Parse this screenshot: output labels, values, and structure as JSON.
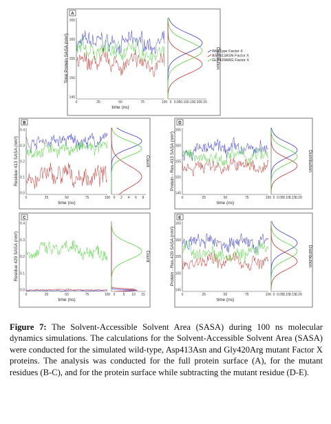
{
  "colors": {
    "wild": "#3b3bd6",
    "asp": "#c8322d",
    "gly": "#4fd43a"
  },
  "caption": {
    "lead": "Figure 7:",
    "text": " The Solvent-Accessible Solvent Area (SASA) during 100 ns molecular dynamics simulations. The calculations for the Solvent-Accessible Solvent Area (SASA) were conducted for the simulated wild-type, Asp413Asn and Gly420Arg mutant Factor X proteins. The analysis was conducted for the full protein surface (A), for the mutant residues (B-C), and for the protein surface while subtracting the mutant residue (D-E)."
  },
  "chart_data": [
    {
      "panel": "A",
      "type": "line",
      "xlabel": "time (ns)",
      "ylabel": "Total Protein SASA (nm²)",
      "dist_label": "Distribution",
      "xlim": [
        0,
        100
      ],
      "ylim": [
        145,
        166
      ],
      "xticks": [
        "0",
        "25",
        "50",
        "75",
        "100"
      ],
      "yticks": [
        "145",
        "150",
        "155",
        "160",
        "165"
      ],
      "dist_ticks": [
        "0",
        "0.05",
        "0.10",
        "0.15",
        "0.20",
        "0.25"
      ],
      "legend": [
        "WildType Factor X",
        "ASP413ASN Factor X",
        "GLY420ARG Factor X"
      ],
      "series": [
        {
          "key": "wild",
          "mean": 159.5,
          "spread": 2.0
        },
        {
          "key": "asp",
          "mean": 154.0,
          "spread": 2.0
        },
        {
          "key": "gly",
          "mean": 157.5,
          "spread": 2.0
        }
      ]
    },
    {
      "panel": "B",
      "type": "line",
      "xlabel": "time (ns)",
      "ylabel": "Residue 413 SASA (nm²)",
      "dist_label": "Count",
      "xlim": [
        0,
        100
      ],
      "ylim": [
        0,
        0.45
      ],
      "xticks": [
        "0",
        "25",
        "50",
        "75",
        "100"
      ],
      "yticks": [
        "0.0",
        "0.1",
        "0.2",
        "0.3",
        "0.4"
      ],
      "dist_ticks": [
        "0",
        "2",
        "4",
        "6",
        "8"
      ],
      "series": [
        {
          "key": "wild",
          "mean": 0.36,
          "spread": 0.04
        },
        {
          "key": "asp",
          "mean": 0.12,
          "spread": 0.06
        },
        {
          "key": "gly",
          "mean": 0.31,
          "spread": 0.04
        }
      ]
    },
    {
      "panel": "C",
      "type": "line",
      "xlabel": "time (ns)",
      "ylabel": "Residue 420 SASA (nm²)",
      "dist_label": "Count",
      "xlim": [
        0,
        100
      ],
      "ylim": [
        0,
        0.42
      ],
      "xticks": [
        "0",
        "25",
        "50",
        "75",
        "100"
      ],
      "yticks": [
        "0.0",
        "0.1",
        "0.2",
        "0.3",
        "0.4"
      ],
      "dist_ticks": [
        "0",
        "5",
        "10",
        "15"
      ],
      "series": [
        {
          "key": "wild",
          "mean": 0.005,
          "spread": 0.003
        },
        {
          "key": "asp",
          "mean": 0.01,
          "spread": 0.004
        },
        {
          "key": "gly",
          "mean": 0.24,
          "spread": 0.04
        }
      ]
    },
    {
      "panel": "D",
      "type": "line",
      "xlabel": "time (ns)",
      "ylabel": "Protein - Res.413 SASA (nm²)",
      "dist_label": "Distribution",
      "xlim": [
        0,
        100
      ],
      "ylim": [
        145,
        166
      ],
      "xticks": [
        "0",
        "25",
        "50",
        "75",
        "100"
      ],
      "yticks": [
        "145",
        "150",
        "155",
        "160",
        "165"
      ],
      "dist_ticks": [
        "0",
        "0.05",
        "0.10",
        "0.15",
        "0.20"
      ],
      "series": [
        {
          "key": "wild",
          "mean": 159.0,
          "spread": 2.0
        },
        {
          "key": "asp",
          "mean": 154.0,
          "spread": 2.0
        },
        {
          "key": "gly",
          "mean": 157.0,
          "spread": 2.0
        }
      ]
    },
    {
      "panel": "E",
      "type": "line",
      "xlabel": "time (ns)",
      "ylabel": "Protein - Res.420 SASA (nm²)",
      "dist_label": "Distribution",
      "xlim": [
        0,
        100
      ],
      "ylim": [
        145,
        166
      ],
      "xticks": [
        "0",
        "25",
        "50",
        "75",
        "100"
      ],
      "yticks": [
        "145",
        "150",
        "155",
        "160",
        "165"
      ],
      "dist_ticks": [
        "0",
        "0.05",
        "0.10",
        "0.15",
        "0.20"
      ],
      "series": [
        {
          "key": "wild",
          "mean": 159.5,
          "spread": 2.0
        },
        {
          "key": "asp",
          "mean": 154.0,
          "spread": 2.0
        },
        {
          "key": "gly",
          "mean": 157.0,
          "spread": 2.0
        }
      ]
    }
  ]
}
